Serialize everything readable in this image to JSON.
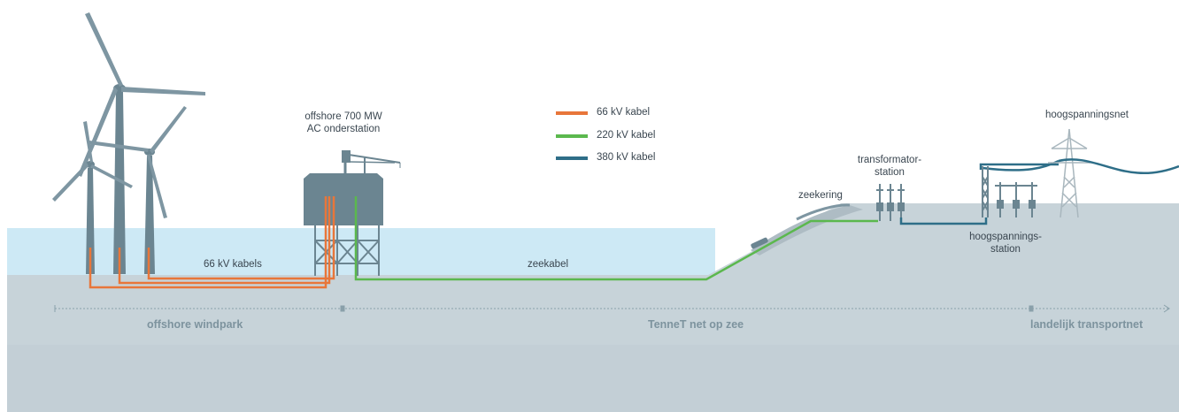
{
  "legend": [
    {
      "label": "66 kV kabel",
      "color": "#e8763a"
    },
    {
      "label": "220 kV kabel",
      "color": "#5bb84e"
    },
    {
      "label": "380 kV kabel",
      "color": "#2e6e88"
    }
  ],
  "labels": {
    "substation_line1": "offshore 700 MW",
    "substation_line2": "AC onderstation",
    "kabels_66": "66 kV kabels",
    "zeekabel": "zeekabel",
    "zeekering": "zeekering",
    "transformator_line1": "transformator-",
    "transformator_line2": "station",
    "hoogspanningsnet": "hoogspanningsnet",
    "hoogspanningsstation_line1": "hoogspannings-",
    "hoogspanningsstation_line2": "station"
  },
  "zones": {
    "windpark": "offshore windpark",
    "tennet": "TenneT net op zee",
    "transportnet": "landelijk transportnet"
  },
  "colors": {
    "sea": "#cde9f5",
    "seabed": "#c7d3d9",
    "deep": "#bccad1",
    "structure": "#6b8591",
    "cable66": "#e8763a",
    "cable220": "#5bb84e",
    "cable380": "#2e6e88",
    "zone_text": "#7d939e"
  }
}
